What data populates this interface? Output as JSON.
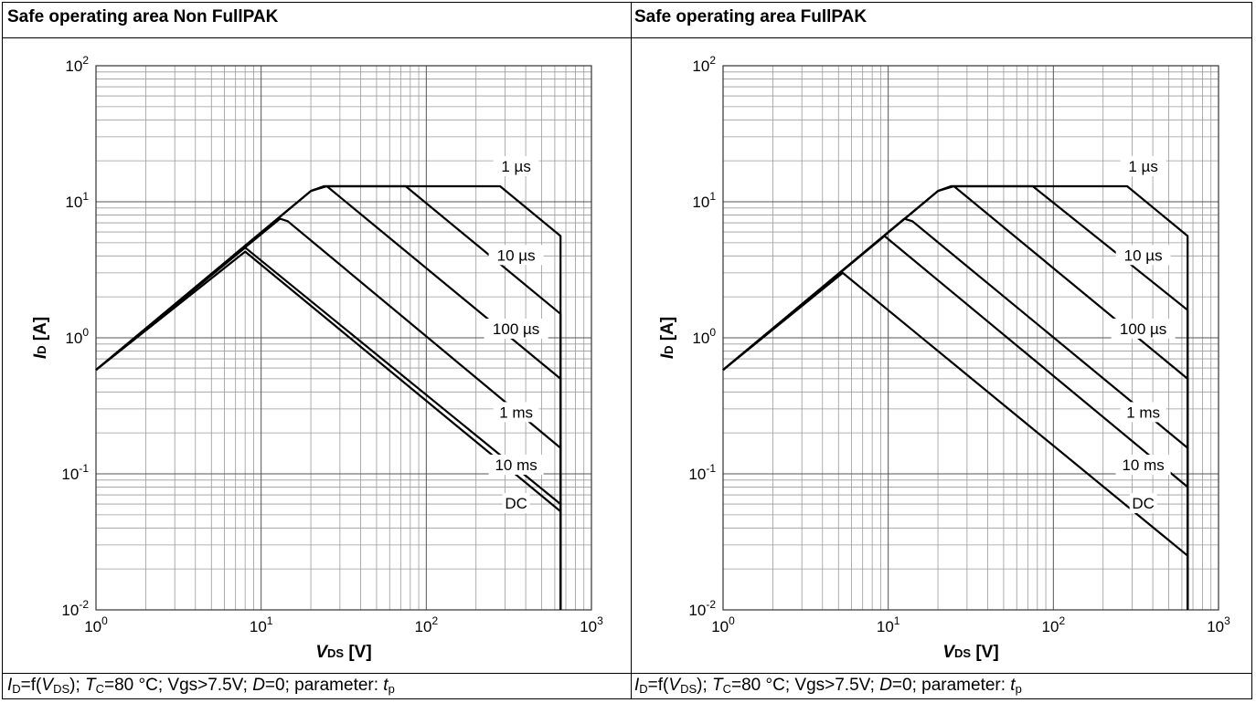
{
  "panels": [
    {
      "header": "Safe operating area Non FullPAK",
      "caption": {
        "p1": "=f(",
        "p2": "); ",
        "p3": "=80 °C; Vgs>7.5V; ",
        "p4": "=0; parameter: "
      }
    },
    {
      "header": "Safe operating area FullPAK",
      "caption": {
        "p1": "=f(",
        "p2": "); ",
        "p3": "=80 °C; Vgs>7.5V; ",
        "p4": "=0; parameter: "
      }
    }
  ],
  "chart_data": [
    {
      "type": "line",
      "title": "Safe operating area Non FullPAK",
      "xlabel": "VDS [V]",
      "ylabel": "ID [A]",
      "x_scale": "log",
      "y_scale": "log",
      "xlim": [
        1,
        1000
      ],
      "ylim": [
        0.01,
        100
      ],
      "x_ticks": [
        1,
        10,
        100,
        1000
      ],
      "y_ticks": [
        0.01,
        0.1,
        1,
        10,
        100
      ],
      "grid": true,
      "series": [
        {
          "name": "1 µs",
          "points": [
            [
              1,
              0.58
            ],
            [
              20,
              12
            ],
            [
              24,
              13
            ],
            [
              280,
              13
            ],
            [
              650,
              5.6
            ],
            [
              650,
              0.01
            ]
          ]
        },
        {
          "name": "10 µs",
          "points": [
            [
              1,
              0.58
            ],
            [
              20,
              12
            ],
            [
              24,
              13
            ],
            [
              75,
              13
            ],
            [
              650,
              1.5
            ],
            [
              650,
              0.01
            ]
          ]
        },
        {
          "name": "100 µs",
          "points": [
            [
              1,
              0.58
            ],
            [
              20,
              12
            ],
            [
              25,
              13
            ],
            [
              650,
              0.5
            ],
            [
              650,
              0.01
            ]
          ]
        },
        {
          "name": "1 ms",
          "points": [
            [
              1,
              0.58
            ],
            [
              13,
              7.5
            ],
            [
              14.5,
              7.2
            ],
            [
              650,
              0.155
            ],
            [
              650,
              0.01
            ]
          ]
        },
        {
          "name": "10 ms",
          "points": [
            [
              1,
              0.58
            ],
            [
              8,
              4.6
            ],
            [
              650,
              0.06
            ],
            [
              650,
              0.01
            ]
          ]
        },
        {
          "name": "DC",
          "points": [
            [
              1,
              0.58
            ],
            [
              8,
              4.3
            ],
            [
              650,
              0.053
            ],
            [
              650,
              0.01
            ]
          ]
        }
      ],
      "labels": [
        {
          "text": "1 µs",
          "x": 350,
          "y": 18
        },
        {
          "text": "10 µs",
          "x": 350,
          "y": 4.0
        },
        {
          "text": "100 µs",
          "x": 350,
          "y": 1.15
        },
        {
          "text": "1 ms",
          "x": 350,
          "y": 0.28
        },
        {
          "text": "10 ms",
          "x": 350,
          "y": 0.115
        },
        {
          "text": "DC",
          "x": 350,
          "y": 0.06
        }
      ]
    },
    {
      "type": "line",
      "title": "Safe operating area FullPAK",
      "xlabel": "VDS [V]",
      "ylabel": "ID [A]",
      "x_scale": "log",
      "y_scale": "log",
      "xlim": [
        1,
        1000
      ],
      "ylim": [
        0.01,
        100
      ],
      "x_ticks": [
        1,
        10,
        100,
        1000
      ],
      "y_ticks": [
        0.01,
        0.1,
        1,
        10,
        100
      ],
      "grid": true,
      "series": [
        {
          "name": "1 µs",
          "points": [
            [
              1,
              0.58
            ],
            [
              20,
              12
            ],
            [
              24,
              13
            ],
            [
              280,
              13
            ],
            [
              650,
              5.6
            ],
            [
              650,
              0.01
            ]
          ]
        },
        {
          "name": "10 µs",
          "points": [
            [
              1,
              0.58
            ],
            [
              20,
              12
            ],
            [
              24,
              13
            ],
            [
              75,
              13
            ],
            [
              650,
              1.6
            ],
            [
              650,
              0.01
            ]
          ]
        },
        {
          "name": "100 µs",
          "points": [
            [
              1,
              0.58
            ],
            [
              20,
              12
            ],
            [
              25,
              13
            ],
            [
              650,
              0.5
            ],
            [
              650,
              0.01
            ]
          ]
        },
        {
          "name": "1 ms",
          "points": [
            [
              1,
              0.58
            ],
            [
              12.5,
              7.5
            ],
            [
              14,
              7.2
            ],
            [
              650,
              0.155
            ],
            [
              650,
              0.01
            ]
          ]
        },
        {
          "name": "10 ms",
          "points": [
            [
              1,
              0.58
            ],
            [
              9.5,
              5.6
            ],
            [
              650,
              0.08
            ],
            [
              650,
              0.01
            ]
          ]
        },
        {
          "name": "DC",
          "points": [
            [
              1,
              0.58
            ],
            [
              5.3,
              3.0
            ],
            [
              650,
              0.025
            ],
            [
              650,
              0.01
            ]
          ]
        }
      ],
      "labels": [
        {
          "text": "1 µs",
          "x": 350,
          "y": 18
        },
        {
          "text": "10 µs",
          "x": 350,
          "y": 4.0
        },
        {
          "text": "100 µs",
          "x": 350,
          "y": 1.15
        },
        {
          "text": "1 ms",
          "x": 350,
          "y": 0.28
        },
        {
          "text": "10 ms",
          "x": 350,
          "y": 0.115
        },
        {
          "text": "DC",
          "x": 350,
          "y": 0.06
        }
      ]
    }
  ]
}
